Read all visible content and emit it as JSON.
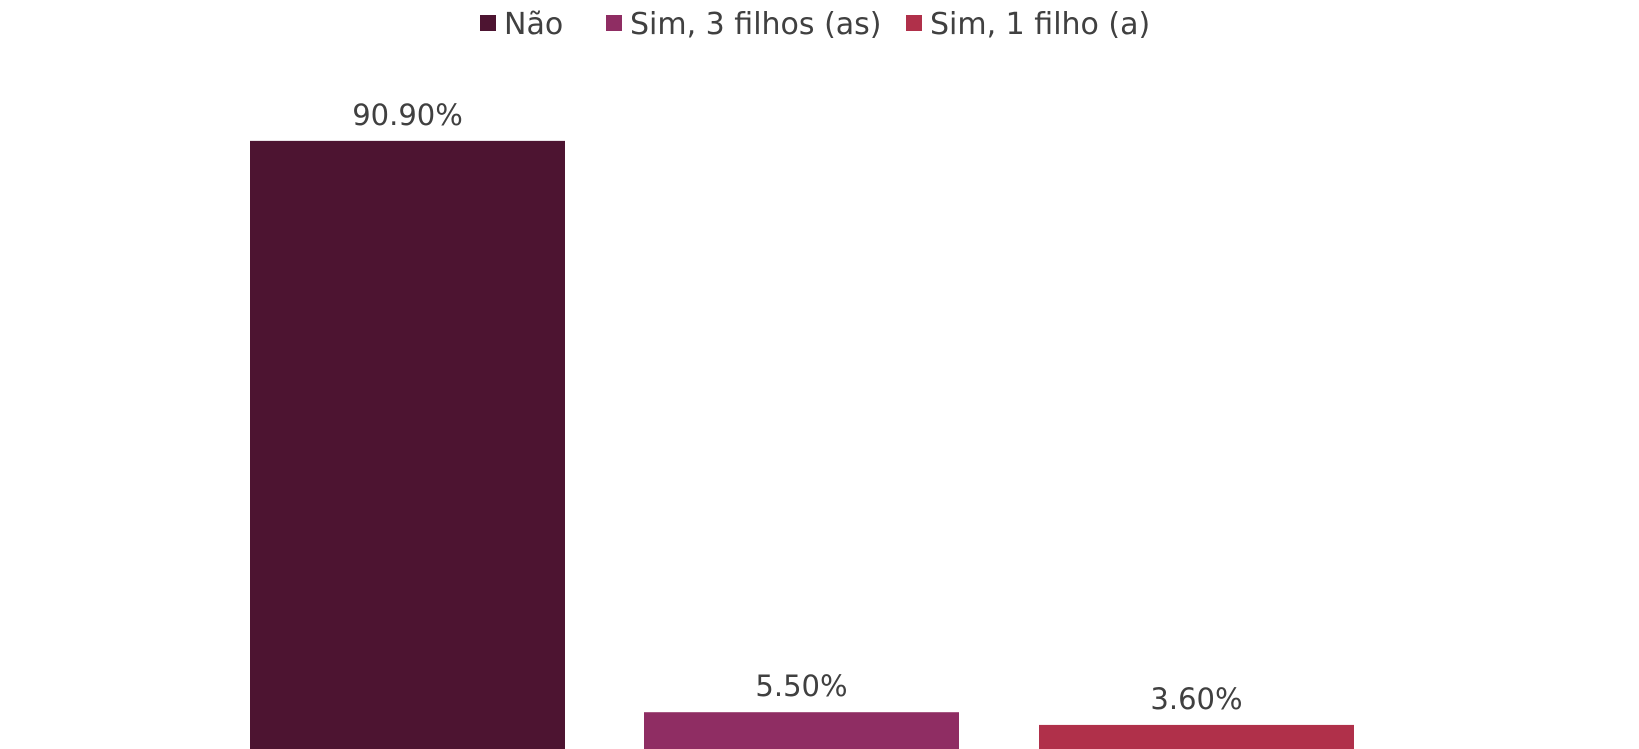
{
  "chart_data": {
    "type": "bar",
    "title": "",
    "xlabel": "",
    "ylabel": "",
    "ylim": [
      0,
      100
    ],
    "grid": false,
    "legend_position": "top",
    "series": [
      {
        "name": "Não",
        "value": 90.9,
        "label": "90.90%",
        "color": "#4d1431"
      },
      {
        "name": "Sim, 3 filhos (as)",
        "value": 5.5,
        "label": "5.50%",
        "color": "#8f2d63"
      },
      {
        "name": "Sim, 1 filho (a)",
        "value": 3.6,
        "label": "3.60%",
        "color": "#b0304a"
      }
    ]
  }
}
